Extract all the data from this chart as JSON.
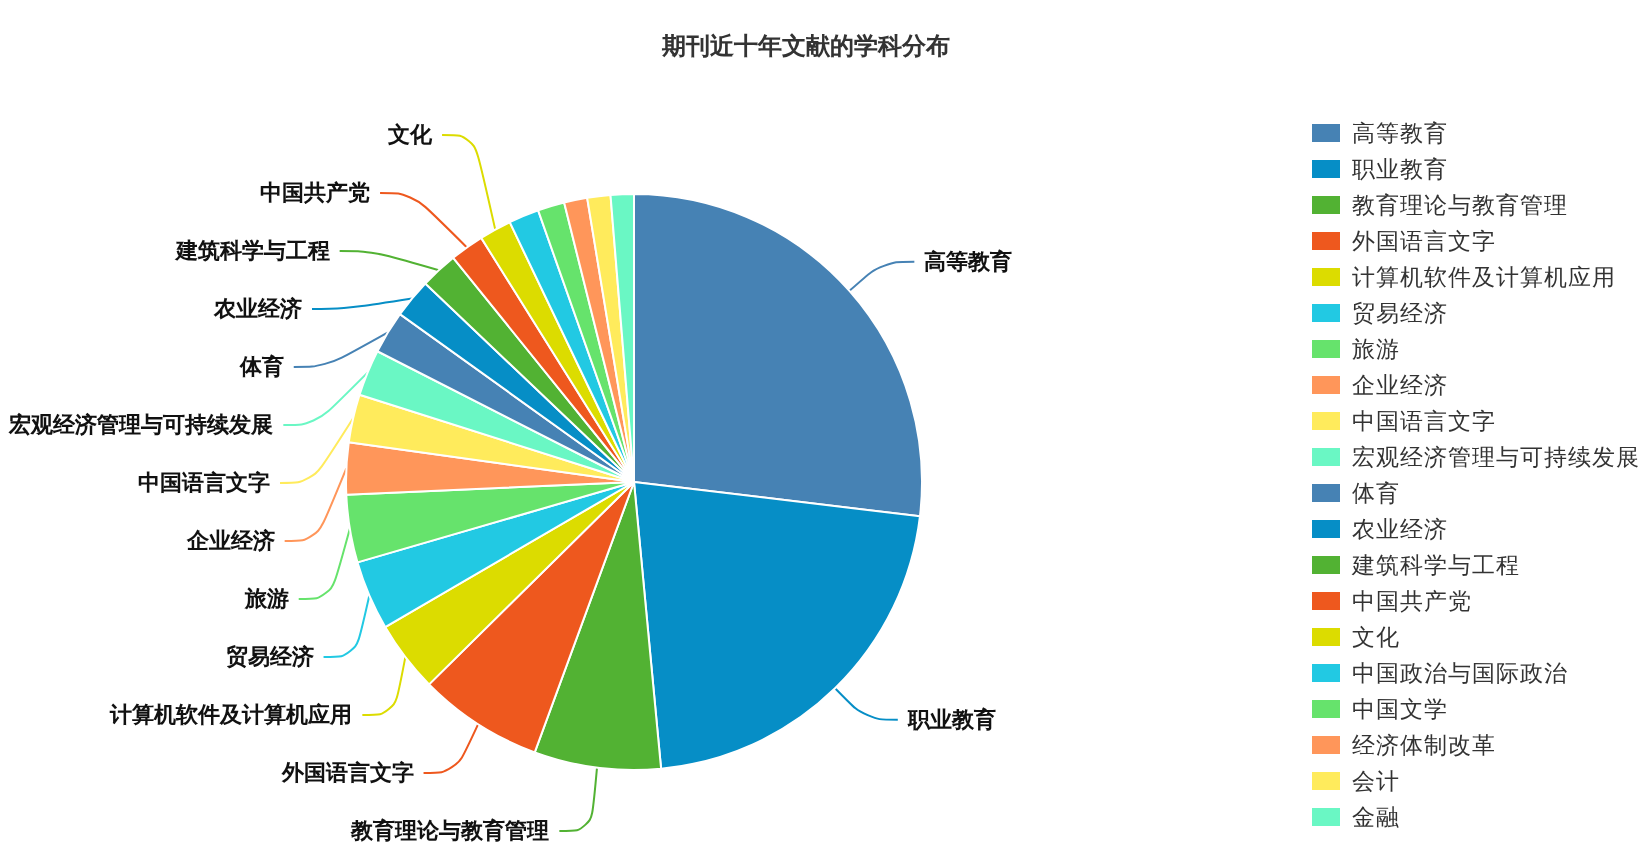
{
  "chart_data": {
    "type": "pie",
    "title": "期刊近十年文献的学科分布",
    "categories": [
      "高等教育",
      "职业教育",
      "教育理论与教育管理",
      "外国语言文字",
      "计算机软件及计算机应用",
      "贸易经济",
      "旅游",
      "企业经济",
      "中国语言文字",
      "宏观经济管理与可持续发展",
      "体育",
      "农业经济",
      "建筑科学与工程",
      "中国共产党",
      "文化",
      "中国政治与国际政治",
      "中国文学",
      "经济体制改革",
      "会计",
      "金融"
    ],
    "values": [
      26.9,
      21.6,
      7.1,
      7.0,
      4.0,
      3.9,
      3.8,
      2.9,
      2.7,
      2.6,
      2.4,
      2.2,
      2.1,
      1.9,
      1.8,
      1.7,
      1.5,
      1.3,
      1.3,
      1.3
    ],
    "colors": [
      "#4682b4",
      "#068ec6",
      "#52b233",
      "#ee581e",
      "#dcdc00",
      "#22c9e3",
      "#66e36c",
      "#ff965a",
      "#ffeb5c",
      "#6af7c4",
      "#4682b4",
      "#068ec6",
      "#52b233",
      "#ee581e",
      "#dcdc00",
      "#22c9e3",
      "#66e36c",
      "#ff965a",
      "#ffeb5c",
      "#6af7c4"
    ],
    "legend": "right"
  }
}
